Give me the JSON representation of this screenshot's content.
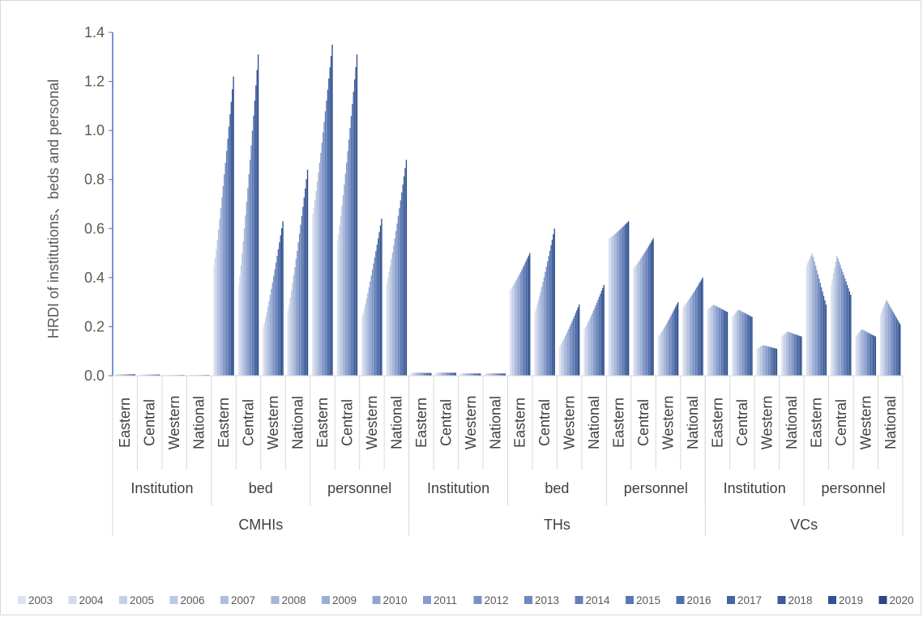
{
  "chart_data": {
    "type": "bar",
    "ylabel": "HRDI of institutions、beds and personal",
    "ylim": [
      0,
      1.4
    ],
    "yticks": [
      "0.0",
      "0.2",
      "0.4",
      "0.6",
      "0.8",
      "1.0",
      "1.2",
      "1.4"
    ],
    "grid": false,
    "legend_position": "bottom",
    "years": [
      "2003",
      "2004",
      "2005",
      "2006",
      "2007",
      "2008",
      "2009",
      "2010",
      "2011",
      "2012",
      "2013",
      "2014",
      "2015",
      "2016",
      "2017",
      "2018",
      "2019",
      "2020"
    ],
    "series_colors": [
      "#dde3f1",
      "#d2daec",
      "#c7d1e8",
      "#bcc8e3",
      "#b1bfde",
      "#a6b6d9",
      "#9badd5",
      "#90a5d0",
      "#869ccb",
      "#7b92c5",
      "#6f88bf",
      "#6580b8",
      "#5a77b1",
      "#4f6eaa",
      "#4565a2",
      "#3b5b9a",
      "#325291",
      "#2a4987"
    ],
    "groups": [
      {
        "name": "CMHIs",
        "subgroups": [
          {
            "name": "Institution",
            "categories": [
              {
                "label": "Eastern",
                "start": 0.005,
                "end": 0.006
              },
              {
                "label": "Central",
                "start": 0.004,
                "end": 0.005
              },
              {
                "label": "Western",
                "start": 0.002,
                "end": 0.003
              },
              {
                "label": "National",
                "start": 0.002,
                "end": 0.003
              }
            ]
          },
          {
            "name": "bed",
            "categories": [
              {
                "label": "Eastern",
                "start": 0.45,
                "end": 1.22
              },
              {
                "label": "Central",
                "start": 0.37,
                "end": 1.31
              },
              {
                "label": "Western",
                "start": 0.2,
                "end": 0.63
              },
              {
                "label": "National",
                "start": 0.27,
                "end": 0.84
              }
            ]
          },
          {
            "name": "personnel",
            "categories": [
              {
                "label": "Eastern",
                "start": 0.66,
                "end": 1.35
              },
              {
                "label": "Central",
                "start": 0.55,
                "end": 1.31
              },
              {
                "label": "Western",
                "start": 0.24,
                "end": 0.64
              },
              {
                "label": "National",
                "start": 0.38,
                "end": 0.88
              }
            ]
          }
        ]
      },
      {
        "name": "THs",
        "subgroups": [
          {
            "name": "Institution",
            "categories": [
              {
                "label": "Eastern",
                "start": 0.013,
                "end": 0.011
              },
              {
                "label": "Central",
                "start": 0.013,
                "end": 0.012
              },
              {
                "label": "Western",
                "start": 0.01,
                "end": 0.009
              },
              {
                "label": "National",
                "start": 0.01,
                "end": 0.009
              }
            ]
          },
          {
            "name": "bed",
            "categories": [
              {
                "label": "Eastern",
                "start": 0.35,
                "end": 0.5
              },
              {
                "label": "Central",
                "start": 0.26,
                "end": 0.6
              },
              {
                "label": "Western",
                "start": 0.12,
                "end": 0.29
              },
              {
                "label": "National",
                "start": 0.19,
                "end": 0.37
              }
            ]
          },
          {
            "name": "personnel",
            "categories": [
              {
                "label": "Eastern",
                "start": 0.56,
                "end": 0.63
              },
              {
                "label": "Central",
                "start": 0.44,
                "end": 0.56
              },
              {
                "label": "Western",
                "start": 0.16,
                "end": 0.3
              },
              {
                "label": "National",
                "start": 0.28,
                "end": 0.4
              }
            ]
          }
        ]
      },
      {
        "name": "VCs",
        "subgroups": [
          {
            "name": "Institution",
            "categories": [
              {
                "label": "Eastern",
                "start": 0.27,
                "end": 0.26,
                "peak": 0.29
              },
              {
                "label": "Central",
                "start": 0.24,
                "end": 0.24,
                "peak": 0.27
              },
              {
                "label": "Western",
                "start": 0.11,
                "end": 0.11,
                "peak": 0.125
              },
              {
                "label": "National",
                "start": 0.16,
                "end": 0.16,
                "peak": 0.18
              }
            ]
          },
          {
            "name": "personnel",
            "categories": [
              {
                "label": "Eastern",
                "start": 0.45,
                "end": 0.29,
                "peak": 0.5
              },
              {
                "label": "Central",
                "start": 0.37,
                "end": 0.33,
                "peak": 0.49
              },
              {
                "label": "Western",
                "start": 0.16,
                "end": 0.16,
                "peak": 0.19
              },
              {
                "label": "National",
                "start": 0.25,
                "end": 0.21,
                "peak": 0.31
              }
            ]
          }
        ]
      }
    ]
  }
}
